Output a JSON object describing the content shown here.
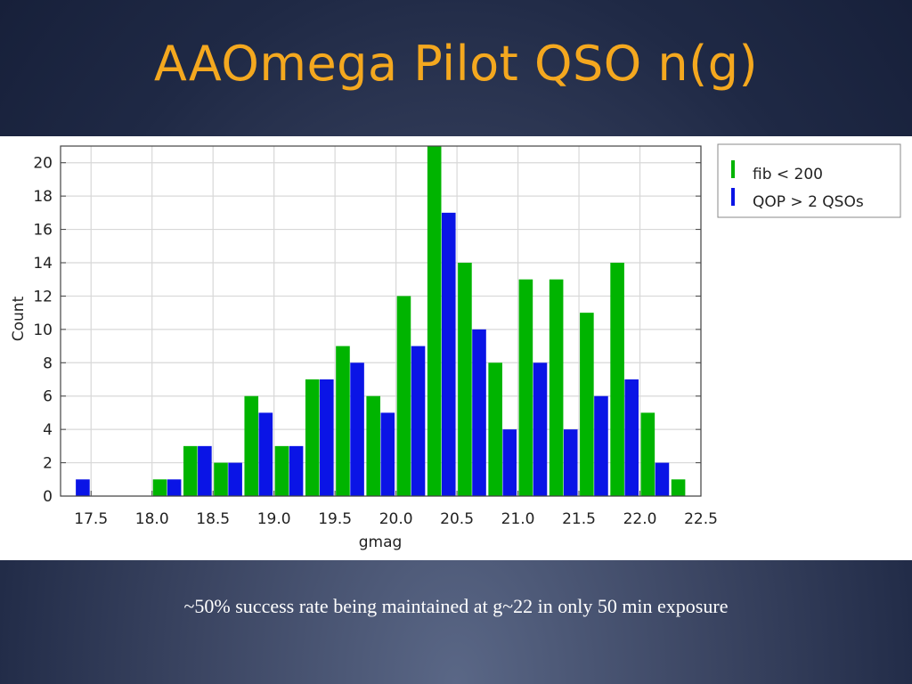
{
  "slide": {
    "title": "AAOmega Pilot QSO n(g)",
    "caption": "~50% success rate being maintained at g~22 in only 50 min exposure"
  },
  "colors": {
    "green": "#00b400",
    "blue": "#0a14e6",
    "title": "#f4a81f"
  },
  "chart_data": {
    "type": "bar",
    "xlabel": "gmag",
    "ylabel": "Count",
    "xlim": [
      17.25,
      22.5
    ],
    "ylim": [
      0,
      21
    ],
    "xticks": [
      "17.5",
      "18.0",
      "18.5",
      "19.0",
      "19.5",
      "20.0",
      "20.5",
      "21.0",
      "21.5",
      "22.0",
      "22.5"
    ],
    "yticks": [
      "0",
      "2",
      "4",
      "6",
      "8",
      "10",
      "12",
      "14",
      "16",
      "18",
      "20"
    ],
    "legend_position": "outside-right-top",
    "grid": true,
    "bin_width": 0.25,
    "bin_centers": [
      17.375,
      17.625,
      17.875,
      18.125,
      18.375,
      18.625,
      18.875,
      19.125,
      19.375,
      19.625,
      19.875,
      20.125,
      20.375,
      20.625,
      20.875,
      21.125,
      21.375,
      21.625,
      21.875,
      22.125,
      22.375
    ],
    "series": [
      {
        "name": "fib < 200",
        "color": "#00b400",
        "values": [
          0,
          0,
          0,
          1,
          3,
          2,
          6,
          3,
          7,
          9,
          6,
          12,
          21,
          14,
          8,
          13,
          13,
          11,
          14,
          5,
          1
        ]
      },
      {
        "name": "QOP > 2 QSOs",
        "color": "#0a14e6",
        "values": [
          1,
          0,
          0,
          1,
          3,
          2,
          5,
          3,
          7,
          8,
          5,
          9,
          17,
          10,
          4,
          8,
          4,
          6,
          7,
          2,
          0
        ]
      }
    ]
  }
}
